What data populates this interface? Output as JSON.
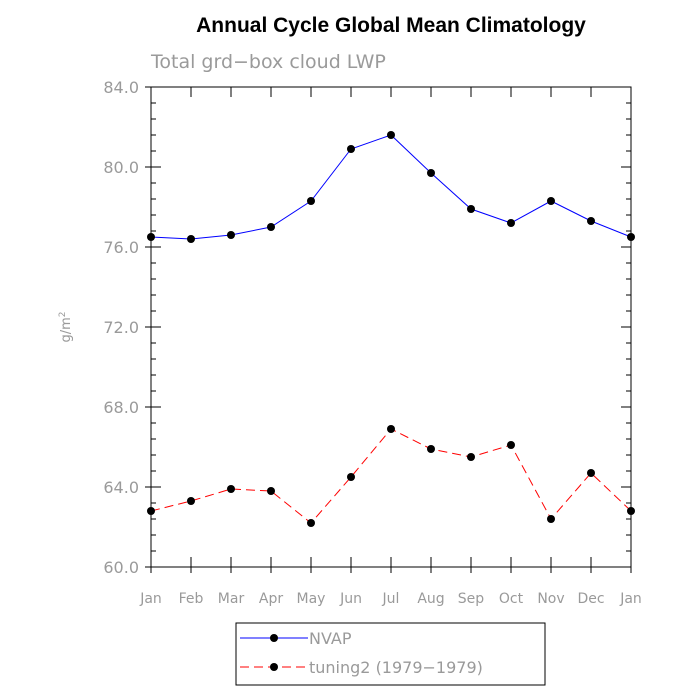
{
  "chart_data": {
    "type": "line",
    "title": "Annual Cycle Global Mean Climatology",
    "subtitle": "Total grd−box cloud LWP",
    "xlabel": "",
    "ylabel_base": "g/m",
    "ylabel_sup": "2",
    "categories": [
      "Jan",
      "Feb",
      "Mar",
      "Apr",
      "May",
      "Jun",
      "Jul",
      "Aug",
      "Sep",
      "Oct",
      "Nov",
      "Dec",
      "Jan"
    ],
    "ylim": [
      60.0,
      84.0
    ],
    "yticks": [
      "60.0",
      "64.0",
      "68.0",
      "72.0",
      "76.0",
      "80.0",
      "84.0"
    ],
    "grid": false,
    "legend_position": "bottom-center",
    "series": [
      {
        "name": "NVAP",
        "color": "#0000ff",
        "dash": "solid",
        "values": [
          76.5,
          76.4,
          76.6,
          77.0,
          78.3,
          80.9,
          81.6,
          79.7,
          77.9,
          77.2,
          78.3,
          77.3,
          76.5
        ]
      },
      {
        "name": "tuning2 (1979−1979)",
        "color": "#ff0000",
        "dash": "dashed",
        "values": [
          62.8,
          63.3,
          63.9,
          63.8,
          62.2,
          64.5,
          66.9,
          65.9,
          65.5,
          66.1,
          62.4,
          64.7,
          62.8
        ]
      }
    ]
  }
}
